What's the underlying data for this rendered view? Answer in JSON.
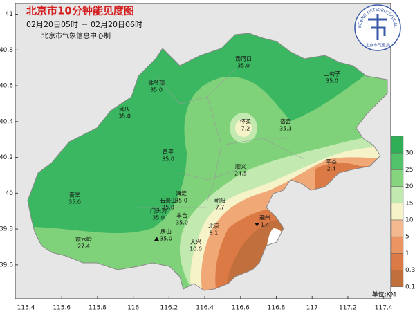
{
  "header": {
    "title": "北京市10分钟能见度图",
    "time_range": "02月20日05时 － 02月20日06时",
    "producer": "北京市气象信息中心制"
  },
  "logo": {
    "name_en": "BEIJING METEOROLOGICAL BUREAU",
    "name_cn": "北京市气象局"
  },
  "map": {
    "xlim": [
      115.34,
      117.44
    ],
    "ylim": [
      39.41,
      41.06
    ],
    "xticks": [
      115.4,
      115.6,
      115.8,
      116,
      116.2,
      116.4,
      116.6,
      116.8,
      117,
      117.2,
      117.4
    ],
    "yticks": [
      41,
      40.8,
      40.6,
      40.4,
      40.2,
      40,
      39.8,
      39.6
    ],
    "stations": [
      {
        "name": "汤河口",
        "value": "35.0"
      },
      {
        "name": "上甸子",
        "value": "35.0"
      },
      {
        "name": "佛爷顶",
        "value": "35.0"
      },
      {
        "name": "延庆",
        "value": "35.0"
      },
      {
        "name": "怀柔",
        "value": "7.2"
      },
      {
        "name": "密云",
        "value": "35.3"
      },
      {
        "name": "昌平",
        "value": "35.0"
      },
      {
        "name": "平谷",
        "value": "2.4"
      },
      {
        "name": "顺义",
        "value": "24.5"
      },
      {
        "name": "斋堂",
        "value": "35.0"
      },
      {
        "name": "海淀",
        "value": "35.0"
      },
      {
        "name": "石景山",
        "value": "35.0"
      },
      {
        "name": "朝阳",
        "value": "7.7"
      },
      {
        "name": "门头沟",
        "value": "35.0"
      },
      {
        "name": "丰台",
        "value": "35.0"
      },
      {
        "name": "北京",
        "value": "8.1"
      },
      {
        "name": "通州",
        "value": "1.4"
      },
      {
        "name": "房山",
        "value": "35.0"
      },
      {
        "name": "大兴",
        "value": "10.0"
      },
      {
        "name": "霞云岭",
        "value": "27.4"
      }
    ]
  },
  "legend": {
    "unit": "单位:KM",
    "levels": [
      {
        "label": 30,
        "color": "#2fae55"
      },
      {
        "label": 25,
        "color": "#52c26a"
      },
      {
        "label": 20,
        "color": "#86d57e"
      },
      {
        "label": 15,
        "color": "#c2eab0"
      },
      {
        "label": 10,
        "color": "#f7f3c8"
      },
      {
        "label": 5,
        "color": "#f4b98e"
      },
      {
        "label": 1,
        "color": "#eb9562"
      },
      {
        "label": 0.3,
        "color": "#dc7a45"
      },
      {
        "label": 0.1,
        "color": "#c1703d"
      }
    ]
  }
}
